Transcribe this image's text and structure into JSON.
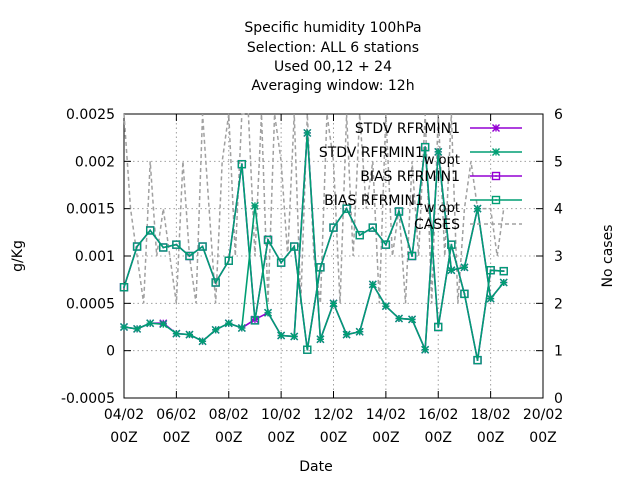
{
  "chart_data": {
    "type": "line",
    "title_lines": [
      "Specific humidity 100hPa",
      "Selection: ALL      6 stations",
      "Used  00,12  + 24",
      "Averaging window: 12h"
    ],
    "xlabel": "Date",
    "ylabel": "g/Kg",
    "y2label": "No cases",
    "x_ticks": [
      {
        "day": 4,
        "line1": "04/02",
        "line2": "00Z"
      },
      {
        "day": 6,
        "line1": "06/02",
        "line2": "00Z"
      },
      {
        "day": 8,
        "line1": "08/02",
        "line2": "00Z"
      },
      {
        "day": 10,
        "line1": "10/02",
        "line2": "00Z"
      },
      {
        "day": 12,
        "line1": "12/02",
        "line2": "00Z"
      },
      {
        "day": 14,
        "line1": "14/02",
        "line2": "00Z"
      },
      {
        "day": 16,
        "line1": "16/02",
        "line2": "00Z"
      },
      {
        "day": 18,
        "line1": "18/02",
        "line2": "00Z"
      },
      {
        "day": 20,
        "line1": "20/02",
        "line2": "00Z"
      }
    ],
    "xlim": [
      4,
      20
    ],
    "ylim": [
      -0.0005,
      0.0025
    ],
    "y_ticks": [
      "-0.0005",
      "0",
      "0.0005",
      "0.001",
      "0.0015",
      "0.002",
      "0.0025"
    ],
    "y2lim": [
      0,
      6
    ],
    "y2_ticks": [
      "0",
      "1",
      "2",
      "3",
      "4",
      "5",
      "6"
    ],
    "grid": true,
    "legend_position": "top-right",
    "x": [
      4.0,
      4.5,
      5.0,
      5.5,
      6.0,
      6.5,
      7.0,
      7.5,
      8.0,
      8.5,
      9.0,
      9.5,
      10.0,
      10.5,
      11.0,
      11.5,
      12.0,
      12.5,
      13.0,
      13.5,
      14.0,
      14.5,
      15.0,
      15.5,
      16.0,
      16.5,
      17.0,
      17.5,
      18.0,
      18.5
    ],
    "series": [
      {
        "name": "STDV RFRMIN1",
        "color": "#9400d3",
        "marker": "star",
        "axis": "y",
        "values": [
          0.00025,
          0.00023,
          0.00029,
          0.00029,
          0.00018,
          0.00017,
          0.0001,
          0.00022,
          0.00029,
          0.00024,
          0.00033,
          0.0004,
          0.00016,
          0.00015,
          0.0023,
          0.00012,
          0.0005,
          0.00017,
          0.0002,
          0.0007,
          0.00047,
          0.00034,
          0.00033,
          1e-05,
          0.0021,
          0.00085,
          0.00088,
          0.0015,
          0.00055,
          0.00072
        ]
      },
      {
        "name": "STDV RFRMIN1_w opt",
        "color": "#009e73",
        "marker": "star",
        "axis": "y",
        "values": [
          0.00025,
          0.00023,
          0.00029,
          0.00028,
          0.00018,
          0.00017,
          0.0001,
          0.00022,
          0.00029,
          0.00024,
          0.00153,
          0.0004,
          0.00016,
          0.00015,
          0.0023,
          0.00012,
          0.0005,
          0.00017,
          0.0002,
          0.0007,
          0.00047,
          0.00034,
          0.00033,
          1e-05,
          0.0021,
          0.00085,
          0.00088,
          0.0015,
          0.00055,
          0.00072
        ]
      },
      {
        "name": "BIAS RFRMIN1",
        "color": "#9400d3",
        "marker": "square",
        "axis": "y",
        "values": [
          0.00067,
          0.0011,
          0.00127,
          0.00109,
          0.00112,
          0.001,
          0.0011,
          0.00072,
          0.00095,
          0.00197,
          0.00032,
          0.00117,
          0.00093,
          0.0011,
          1e-05,
          0.00088,
          0.0013,
          0.0015,
          0.00122,
          0.0013,
          0.00112,
          0.00147,
          0.001,
          0.00215,
          0.00025,
          0.00112,
          0.0006,
          -0.0001,
          0.00085,
          0.00084
        ]
      },
      {
        "name": "BIAS RFRMIN1_w opt",
        "color": "#009e73",
        "marker": "square",
        "axis": "y",
        "values": [
          0.00067,
          0.0011,
          0.00127,
          0.00109,
          0.00112,
          0.001,
          0.0011,
          0.00072,
          0.00095,
          0.00197,
          0.00032,
          0.00117,
          0.00093,
          0.0011,
          1e-05,
          0.00088,
          0.0013,
          0.0015,
          0.00122,
          0.0013,
          0.00112,
          0.00147,
          0.001,
          0.00215,
          0.00025,
          0.00112,
          0.0006,
          -0.0001,
          0.00085,
          0.00084
        ]
      },
      {
        "name": "CASES",
        "color": "#a0a0a0",
        "marker": "none",
        "dashed": true,
        "axis": "y2",
        "x": [
          4.0,
          4.25,
          4.5,
          4.75,
          5.0,
          5.25,
          5.5,
          5.75,
          6.0,
          6.25,
          6.5,
          6.75,
          7.0,
          7.25,
          7.5,
          7.75,
          8.0,
          8.25,
          8.5,
          8.75,
          9.0,
          9.25,
          9.5,
          9.75,
          10.0,
          10.25,
          10.5,
          10.75,
          11.0,
          11.25,
          11.5,
          11.75,
          12.0,
          12.25,
          12.5,
          12.75,
          13.0,
          13.25,
          13.5,
          13.75,
          14.0,
          14.25,
          14.5,
          14.75,
          15.0,
          15.25,
          15.5,
          15.75,
          16.0,
          16.25,
          16.5,
          16.75,
          17.0,
          17.25,
          17.5,
          17.75,
          18.0,
          18.25,
          18.5
        ],
        "values": [
          6,
          4,
          3,
          2,
          5,
          3,
          4,
          3,
          2,
          5,
          3,
          2,
          6,
          4,
          2,
          5,
          6,
          3,
          6,
          6,
          3,
          6,
          2,
          6,
          5,
          3,
          6,
          2,
          6,
          3,
          2,
          6,
          5,
          2,
          6,
          3,
          6,
          4,
          5,
          2,
          6,
          3,
          4,
          2,
          5,
          3,
          6,
          2,
          6,
          3,
          6,
          2,
          4,
          5,
          4,
          4,
          4,
          3,
          4
        ]
      }
    ]
  }
}
